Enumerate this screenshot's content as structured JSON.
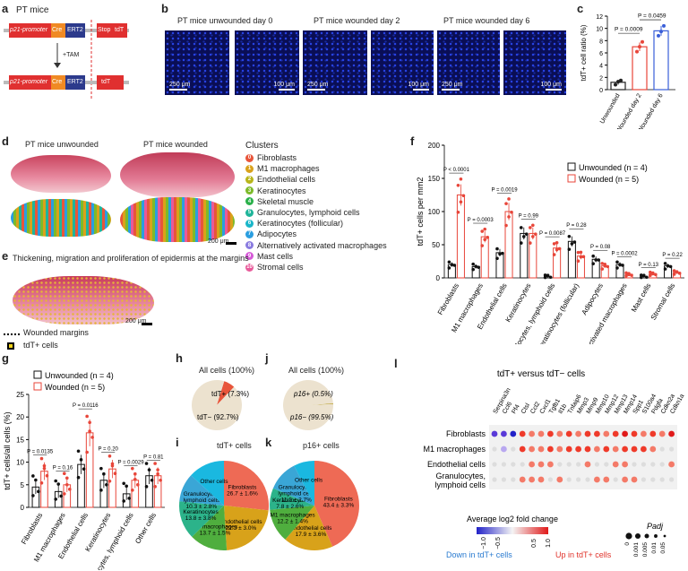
{
  "panels": {
    "a": "a",
    "b": "b",
    "c": "c",
    "d": "d",
    "e": "e",
    "f": "f",
    "g": "g",
    "h": "h",
    "i": "i",
    "j": "j",
    "k": "k",
    "l": "l"
  },
  "a": {
    "title": "PT mice",
    "promoter": "p21-promoter",
    "cre": "Cre",
    "ert2": "ERT2",
    "stop": "Stop",
    "tdt": "tdT",
    "tam": "+TAM"
  },
  "b": {
    "titles": [
      "PT mice unwounded day 0",
      "PT mice wounded day 2",
      "PT mice wounded day 6"
    ],
    "scale_large": "250 μm",
    "scale_small": "100 μm"
  },
  "c": {
    "ylabel": "tdT+ cell ratio (%)",
    "pvals": [
      "P = 0.0009",
      "P = 0.0459"
    ],
    "chart_data": {
      "type": "bar",
      "categories": [
        "Unwounded",
        "Wounded day 2",
        "Wounded day 6"
      ],
      "values": [
        1.2,
        7.0,
        9.6
      ],
      "errors": [
        0.4,
        0.7,
        0.8
      ],
      "colors": [
        "#222222",
        "#e8463a",
        "#3a5fd8"
      ],
      "ylim": [
        0,
        12
      ],
      "yticks": [
        0,
        2,
        4,
        6,
        8,
        10,
        12
      ],
      "points": [
        [
          0.8,
          1.3,
          1.5
        ],
        [
          6.2,
          7.0,
          7.8
        ],
        [
          8.8,
          9.5,
          10.4
        ]
      ]
    }
  },
  "d": {
    "title_left": "PT mice unwounded",
    "title_right": "PT mice wounded",
    "scale": "200 μm",
    "clusters_title": "Clusters",
    "clusters": [
      {
        "n": "0",
        "name": "Fibroblasts",
        "color": "#e8553a"
      },
      {
        "n": "1",
        "name": "M1 macrophages",
        "color": "#d9a21b"
      },
      {
        "n": "2",
        "name": "Endothelial cells",
        "color": "#b8b51a"
      },
      {
        "n": "3",
        "name": "Keratinocytes",
        "color": "#7dba2a"
      },
      {
        "n": "4",
        "name": "Skeletal muscle",
        "color": "#2ab04a"
      },
      {
        "n": "5",
        "name": "Granulocytes, lymphoid cells",
        "color": "#1fb59a"
      },
      {
        "n": "6",
        "name": "Keratinocytes (follicular)",
        "color": "#1ab6c9"
      },
      {
        "n": "7",
        "name": "Adipocytes",
        "color": "#2a9ee0"
      },
      {
        "n": "8",
        "name": "Alternatively activated macrophages",
        "color": "#8a7be0"
      },
      {
        "n": "9",
        "name": "Mast cells",
        "color": "#d65ad8"
      },
      {
        "n": "10",
        "name": "Stromal cells",
        "color": "#e85a9a"
      }
    ]
  },
  "e": {
    "title": "Thickening, migration and proliferation of epidermis at the margins",
    "legend_wounded": "Wounded margins",
    "legend_cells": "tdT+ cells",
    "scale": "200 μm"
  },
  "f": {
    "ylabel": "tdT+ cells per mm2",
    "legend": [
      "Unwounded (n = 4)",
      "Wounded (n = 5)"
    ],
    "pvals": [
      "P < 0.0001",
      "P = 0.0003",
      "P = 0.0019",
      "P = 0.99",
      "P = 0.0087",
      "P = 0.28",
      "P = 0.08",
      "P = 0.0002",
      "P = 0.13",
      "P = 0.22"
    ],
    "chart_data": {
      "type": "bar",
      "categories": [
        "Fibroblasts",
        "M1 macrophages",
        "Endothelial cells",
        "Keratinocytes",
        "Granulocytes, lymphoid cells",
        "Keratinocytes (follicular)",
        "Adipocytes",
        "Alternatively activated macrophages",
        "Mast cells",
        "Stromal cells"
      ],
      "series": [
        {
          "name": "Unwounded (n = 4)",
          "values": [
            20,
            17,
            38,
            67,
            2,
            55,
            28,
            20,
            2,
            18
          ]
        },
        {
          "name": "Wounded (n = 5)",
          "values": [
            125,
            62,
            100,
            67,
            45,
            33,
            18,
            5,
            6,
            8
          ]
        }
      ],
      "ylim": [
        0,
        200
      ],
      "yticks": [
        0,
        50,
        100,
        150,
        200
      ]
    }
  },
  "g": {
    "ylabel": "tdT+ cells/all cells (%)",
    "legend": [
      "Unwounded (n = 4)",
      "Wounded (n = 5)"
    ],
    "pvals": [
      "P = 0.0135",
      "P = 0.16",
      "P = 0.0116",
      "P = 0.20",
      "P = 0.0029",
      "P = 0.81"
    ],
    "chart_data": {
      "type": "bar",
      "categories": [
        "Fibroblasts",
        "M1 macrophages",
        "Endothelial cells",
        "Keratinocytes",
        "Granulocytes, lymphoid cells",
        "Other cells"
      ],
      "series": [
        {
          "name": "Unwounded (n = 4)",
          "values": [
            4.5,
            3.5,
            9.5,
            6.0,
            3.0,
            7.0
          ]
        },
        {
          "name": "Wounded (n = 5)",
          "values": [
            8.0,
            5.0,
            16.5,
            8.5,
            6.0,
            7.0
          ]
        }
      ],
      "ylim": [
        0,
        25
      ],
      "yticks": [
        0,
        5,
        10,
        15,
        20,
        25
      ]
    }
  },
  "h": {
    "title": "All cells (100%)",
    "chart_data": {
      "type": "pie",
      "labels": [
        "tdT+ (7.3%)",
        "tdT− (92.7%)"
      ],
      "values": [
        7.3,
        92.7
      ]
    }
  },
  "j": {
    "title": "All cells (100%)",
    "chart_data": {
      "type": "pie",
      "labels": [
        "p16+ (0.5%)",
        "p16− (99.5%)"
      ],
      "values": [
        0.5,
        99.5
      ]
    }
  },
  "i": {
    "title": "tdT+ cells",
    "chart_data": {
      "type": "pie",
      "labels": [
        "Fibroblasts",
        "Endothelial cells",
        "M1 macrophages",
        "Keratinocytes",
        "Granulocytes, lymphoid cells",
        "Other cells"
      ],
      "values": [
        26.7,
        22.3,
        13.7,
        13.8,
        10.3,
        13.2
      ],
      "texts": [
        "26.7 ± 1.6%",
        "22.3 ± 3.0%",
        "13.7 ± 1.5%",
        "13.8 ± 3.8%",
        "10.3 ± 2.8%",
        ""
      ],
      "colors": [
        "#ee6a55",
        "#d8a21a",
        "#4fae3e",
        "#2cb38a",
        "#3aa6d6",
        "#1ab8e0"
      ]
    }
  },
  "k": {
    "title": "p16+ cells",
    "chart_data": {
      "type": "pie",
      "labels": [
        "Fibroblasts",
        "Endothelial cells",
        "M1 macrophages",
        "Keratinocytes",
        "Granulocytes, lymphoid cells",
        "Other cells"
      ],
      "values": [
        43.4,
        17.9,
        12.2,
        7.8,
        11.2,
        7.5
      ],
      "texts": [
        "43.4 ± 3.3%",
        "17.9 ± 3.6%",
        "12.2 ± 1.4%",
        "7.8 ± 2.6%",
        "11.2 ± 2.7%",
        ""
      ],
      "colors": [
        "#ee6a55",
        "#d8a21a",
        "#4fae3e",
        "#2cb38a",
        "#3aa6d6",
        "#1ab8e0"
      ]
    }
  },
  "l": {
    "title": "tdT+ versus tdT− cells",
    "genes": [
      "Serpina3n",
      "Ccl6",
      "Pf4",
      "Ctsl",
      "Ccl2",
      "Cxcl1",
      "Tgfb1",
      "Il1b",
      "Tnfaip6",
      "Mmp3",
      "Mmp9",
      "Mmp10",
      "Mmp12",
      "Mmp13",
      "Mmp14",
      "Spp1",
      "S100a4",
      "Pdgfa",
      "Cdkn2a",
      "Cdkn1a"
    ],
    "rows": [
      "Fibroblasts",
      "M1 macrophages",
      "Endothelial cells",
      "Granulocytes, lymphoid cells"
    ],
    "fc_label": "Average log2 fold change",
    "padj_label": "Padj",
    "fc_ticks": [
      "−1.0",
      "−0.5",
      "0.5",
      "1.0"
    ],
    "padj_ticks": [
      "0",
      "0.001",
      "0.005",
      "0.01",
      "0.05"
    ],
    "down": "Down in tdT+ cells",
    "up": "Up in tdT+ cells",
    "chart_data": {
      "type": "heatmap",
      "values": [
        [
          -0.8,
          -0.9,
          -1.0,
          0.7,
          0.6,
          0.5,
          0.7,
          0.6,
          0.7,
          0.6,
          0.8,
          0.7,
          0.6,
          0.7,
          1.0,
          0.8,
          0.6,
          0.7,
          0.6,
          0.9
        ],
        [
          0.0,
          -0.6,
          0.0,
          0.7,
          0.6,
          0.6,
          0.7,
          0.6,
          0.7,
          0.7,
          0.8,
          0.6,
          0.7,
          0.6,
          0.7,
          0.8,
          0.7,
          0.6,
          0.0,
          0.0
        ],
        [
          0.0,
          0.0,
          0.0,
          0.0,
          0.6,
          0.6,
          0.6,
          0.0,
          0.0,
          0.0,
          0.6,
          0.0,
          0.0,
          0.6,
          0.6,
          0.0,
          0.0,
          0.0,
          0.0,
          0.6
        ],
        [
          0.0,
          0.0,
          0.0,
          0.6,
          0.6,
          0.6,
          0.0,
          0.6,
          0.0,
          0.0,
          0.0,
          0.6,
          0.6,
          0.0,
          0.6,
          0.6,
          0.0,
          0.0,
          0.0,
          0.0
        ]
      ]
    }
  }
}
